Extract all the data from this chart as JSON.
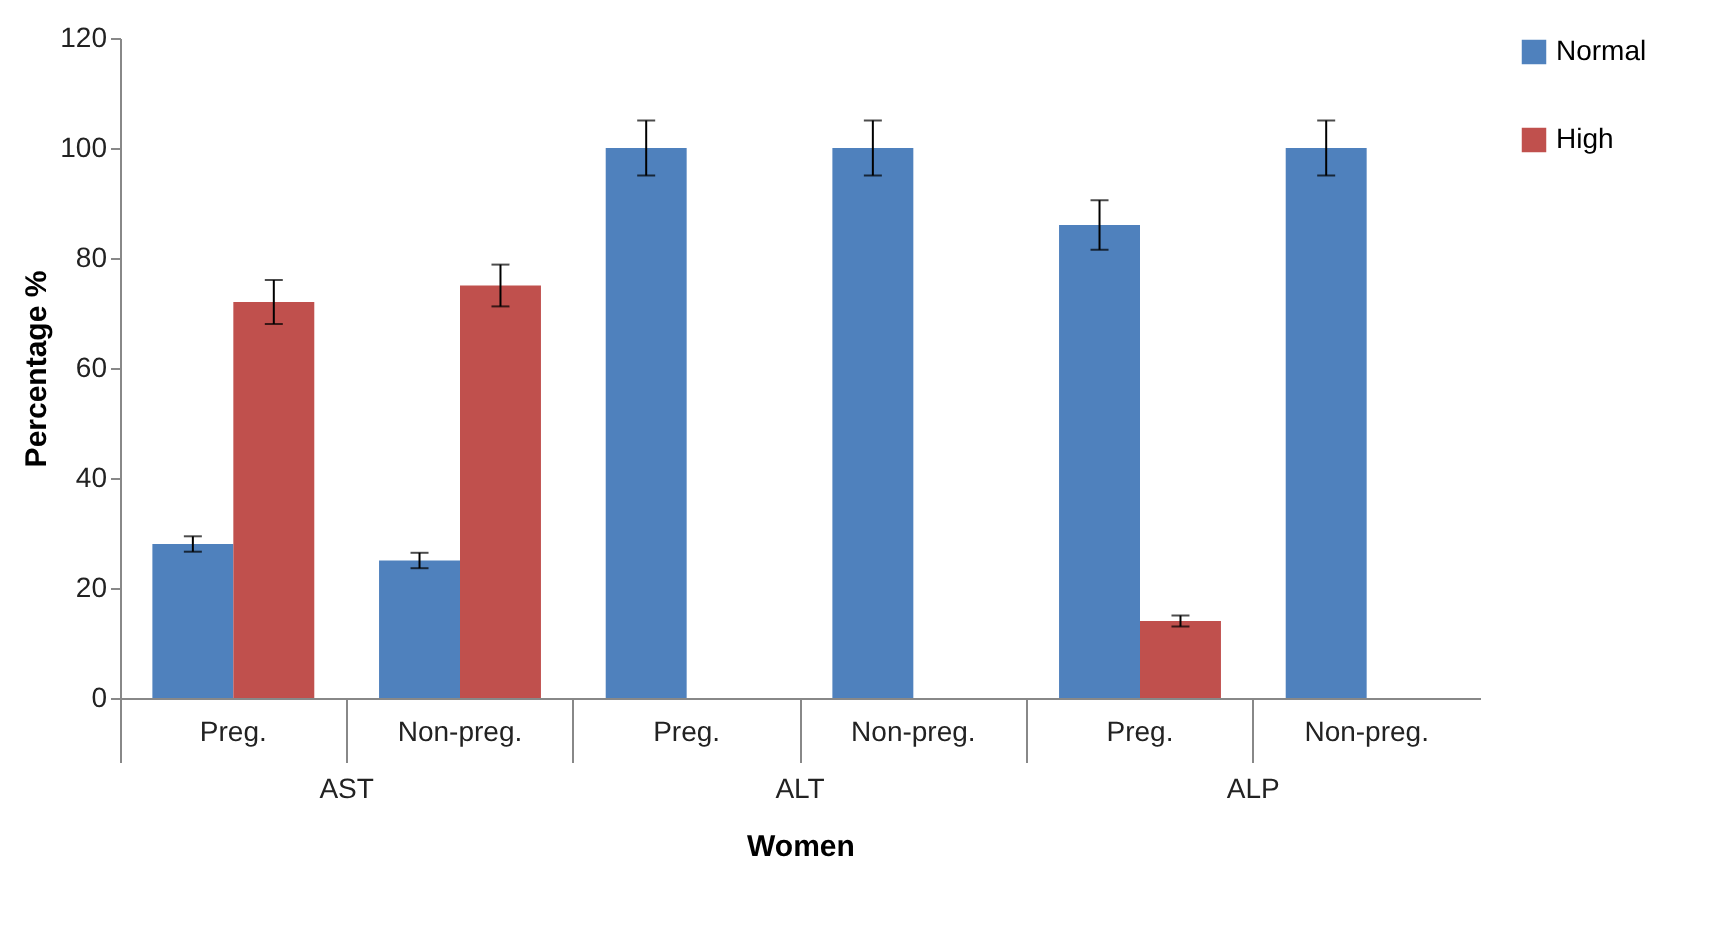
{
  "chart_data": {
    "type": "bar",
    "xlabel": "Women",
    "ylabel": "Percentage %",
    "categories": [
      "Preg.",
      "Non-preg.",
      "Preg.",
      "Non-preg.",
      "Preg.",
      "Non-preg."
    ],
    "series": [
      {
        "name": "Normal",
        "color": "#4f81bd",
        "values": [
          28,
          25,
          100,
          100,
          86,
          100
        ],
        "errors": [
          1.4,
          1.4,
          5,
          5,
          4.5,
          5
        ]
      },
      {
        "name": "High",
        "color": "#c0504d",
        "values": [
          72,
          75,
          null,
          null,
          14,
          null
        ],
        "errors": [
          4,
          3.8,
          null,
          null,
          1,
          null
        ]
      }
    ],
    "annotations": [
      "AST",
      "ALT",
      "ALP"
    ],
    "ylim": [
      0,
      120
    ],
    "yticks": [
      0,
      20,
      40,
      60,
      80,
      100,
      120
    ],
    "grid": false,
    "legend": "top right"
  }
}
